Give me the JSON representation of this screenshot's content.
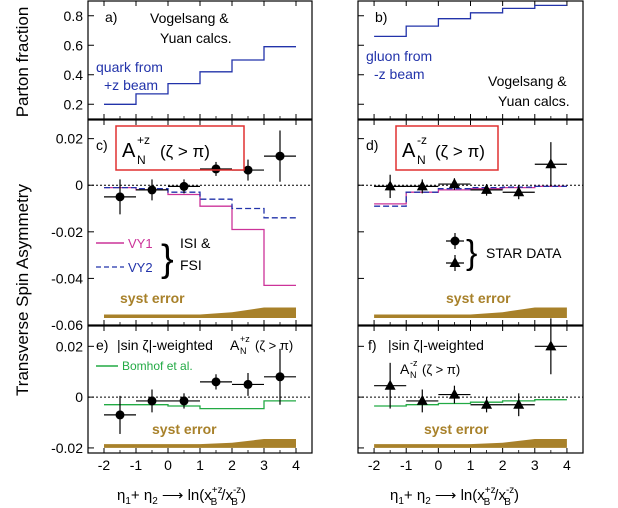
{
  "figure": {
    "left_ylabel_top": "Parton fraction",
    "left_ylabel_bottom": "Transverse Spin Asymmetry",
    "xlabel_left": "η1+ η2 ⟶ ln(x_B^{+z}/x_B^{-z})",
    "xlabel_right": "η1+ η2 ⟶ ln(x_B^{+z}/x_B^{-z})",
    "x_ticks": [
      "-2",
      "-1",
      "0",
      "1",
      "2",
      "3",
      "4"
    ]
  },
  "texts": {
    "a_label": "a)",
    "b_label": "b)",
    "c_label": "c)",
    "d_label": "d)",
    "e_label": "e)",
    "f_label": "f)",
    "vy_calcs_1": "Vogelsang &",
    "vy_calcs_2": "Yuan calcs.",
    "quark_1": "quark from",
    "quark_2": "+z beam",
    "gluon_1": "gluon from",
    "gluon_2": "-z beam",
    "an_plus_base": "A",
    "an_plus_sup": "+z",
    "an_sub": "N",
    "an_minus_sup": "-z",
    "zeta_cond": "(ζ > π)",
    "legend_vy1": "VY1",
    "legend_vy2": "VY2",
    "legend_isi": "ISI &",
    "legend_fsi": "FSI",
    "star_data": "STAR  DATA",
    "syst_error": "syst error",
    "sin_weighted": "|sin ζ|-weighted",
    "bomhof": "Bomhof et al."
  },
  "colors": {
    "quark": "#2233aa",
    "gluon": "#2233aa",
    "vy1": "#cc3399",
    "vy2": "#2233aa",
    "bomhof": "#22aa44",
    "syst": "#a8812a",
    "box": "#e03030"
  },
  "chart_data": [
    {
      "panel": "a",
      "type": "line",
      "ylabel": "Parton fraction",
      "ylim": [
        0.1,
        0.9
      ],
      "xlim": [
        -2.5,
        4.5
      ],
      "y_ticks": [
        "0.2",
        "0.4",
        "0.6",
        "0.8"
      ],
      "series": [
        {
          "name": "quark from +z beam",
          "step_edges": [
            -2,
            -1,
            0,
            1,
            2,
            3,
            4
          ],
          "values": [
            0.2,
            0.27,
            0.34,
            0.42,
            0.5,
            0.59
          ]
        }
      ]
    },
    {
      "panel": "b",
      "type": "line",
      "ylim": [
        0.1,
        0.9
      ],
      "xlim": [
        -2.5,
        4.5
      ],
      "series": [
        {
          "name": "gluon from -z beam",
          "step_edges": [
            -2,
            -1,
            0,
            1,
            2,
            3,
            4
          ],
          "values": [
            0.66,
            0.73,
            0.78,
            0.82,
            0.85,
            0.87
          ]
        }
      ]
    },
    {
      "panel": "c",
      "type": "scatter",
      "ylabel": "Transverse Spin Asymmetry",
      "ylim": [
        -0.06,
        0.028
      ],
      "xlim": [
        -2.5,
        4.5
      ],
      "y_ticks": [
        "0.02",
        "0",
        "-0.02",
        "-0.04",
        "-0.06"
      ],
      "data": {
        "x": [
          -1.5,
          -0.5,
          0.5,
          1.5,
          2.5,
          3.5
        ],
        "y": [
          -0.005,
          -0.002,
          -0.0005,
          0.007,
          0.0065,
          0.0125
        ],
        "yerr": [
          0.0075,
          0.0045,
          0.003,
          0.003,
          0.0045,
          0.011
        ],
        "xerr": [
          0.5,
          0.5,
          0.5,
          0.5,
          0.5,
          0.5
        ]
      },
      "series": [
        {
          "name": "VY1",
          "step_edges": [
            -2,
            -1,
            0,
            1,
            2,
            3,
            4
          ],
          "values": [
            -0.001,
            -0.002,
            -0.004,
            -0.009,
            -0.019,
            -0.043
          ]
        },
        {
          "name": "VY2",
          "step_edges": [
            -2,
            -1,
            0,
            1,
            2,
            3,
            4
          ],
          "values": [
            -0.001,
            -0.0015,
            -0.003,
            -0.006,
            -0.01,
            -0.014
          ]
        }
      ],
      "syst_band": {
        "x": [
          -2,
          -1,
          0,
          1,
          2,
          3,
          4
        ],
        "upper": [
          -0.0555,
          -0.0555,
          -0.0555,
          -0.0555,
          -0.0545,
          -0.0525,
          -0.0525
        ],
        "lower": [
          -0.057,
          -0.057,
          -0.057,
          -0.057,
          -0.057,
          -0.057,
          -0.057
        ]
      }
    },
    {
      "panel": "d",
      "type": "scatter",
      "ylim": [
        -0.06,
        0.028
      ],
      "xlim": [
        -2.5,
        4.5
      ],
      "data": {
        "x": [
          -1.5,
          -0.5,
          0.5,
          1.5,
          2.5,
          3.5
        ],
        "y": [
          -0.0005,
          -0.0005,
          0.0005,
          -0.002,
          -0.003,
          0.009
        ],
        "yerr": [
          0.005,
          0.003,
          0.0025,
          0.0025,
          0.003,
          0.0095
        ],
        "xerr": [
          0.5,
          0.5,
          0.5,
          0.5,
          0.5,
          0.5
        ]
      },
      "series": [
        {
          "name": "VY1",
          "step_edges": [
            -2,
            -1,
            0,
            1,
            2,
            3,
            4
          ],
          "values": [
            -0.008,
            -0.003,
            -0.002,
            -0.0015,
            -0.001,
            -0.0005
          ]
        },
        {
          "name": "VY2",
          "step_edges": [
            -2,
            -1,
            0,
            1,
            2,
            3,
            4
          ],
          "values": [
            -0.009,
            -0.003,
            -0.0015,
            -0.001,
            -0.0008,
            -0.0005
          ]
        }
      ],
      "syst_band": {
        "x": [
          -2,
          -1,
          0,
          1,
          2,
          3,
          4
        ],
        "upper": [
          -0.0555,
          -0.0555,
          -0.0555,
          -0.0555,
          -0.0545,
          -0.0525,
          -0.0525
        ],
        "lower": [
          -0.057,
          -0.057,
          -0.057,
          -0.057,
          -0.057,
          -0.057,
          -0.057
        ]
      }
    },
    {
      "panel": "e",
      "type": "scatter",
      "ylim": [
        -0.022,
        0.028
      ],
      "xlim": [
        -2.5,
        4.5
      ],
      "y_ticks": [
        "0.02",
        "0",
        "-0.02"
      ],
      "data": {
        "x": [
          -1.5,
          -0.5,
          0.5,
          1.5,
          2.5,
          3.5
        ],
        "y": [
          -0.007,
          -0.0015,
          -0.0015,
          0.006,
          0.005,
          0.008
        ],
        "yerr": [
          0.0075,
          0.0045,
          0.003,
          0.003,
          0.0045,
          0.011
        ],
        "xerr": [
          0.5,
          0.5,
          0.5,
          0.5,
          0.5,
          0.5
        ]
      },
      "series": [
        {
          "name": "Bomhof et al.",
          "step_edges": [
            -2,
            -1,
            0,
            1,
            2,
            3,
            4
          ],
          "values": [
            -0.003,
            -0.003,
            -0.0035,
            -0.0045,
            -0.0045,
            -0.0015
          ]
        }
      ],
      "syst_band": {
        "x": [
          -2,
          -1,
          0,
          1,
          2,
          3,
          4
        ],
        "upper": [
          -0.0185,
          -0.0185,
          -0.0185,
          -0.0185,
          -0.018,
          -0.0165,
          -0.0165
        ],
        "lower": [
          -0.02,
          -0.02,
          -0.02,
          -0.02,
          -0.02,
          -0.02,
          -0.02
        ]
      }
    },
    {
      "panel": "f",
      "type": "scatter",
      "ylim": [
        -0.022,
        0.028
      ],
      "xlim": [
        -2.5,
        4.5
      ],
      "data": {
        "x": [
          -1.5,
          -0.5,
          0.5,
          1.5,
          2.5,
          3.5
        ],
        "y": [
          0.0045,
          -0.0015,
          0.001,
          -0.003,
          -0.003,
          0.02
        ],
        "yerr": [
          0.009,
          0.0045,
          0.0035,
          0.003,
          0.0045,
          0.011
        ],
        "xerr": [
          0.5,
          0.5,
          0.5,
          0.5,
          0.5,
          0.5
        ]
      },
      "series": [
        {
          "name": "Bomhof et al.",
          "step_edges": [
            -2,
            -1,
            0,
            1,
            2,
            3,
            4
          ],
          "values": [
            -0.0035,
            -0.003,
            -0.0025,
            -0.002,
            -0.0015,
            -0.001
          ]
        }
      ],
      "syst_band": {
        "x": [
          -2,
          -1,
          0,
          1,
          2,
          3,
          4
        ],
        "upper": [
          -0.0185,
          -0.0185,
          -0.0185,
          -0.0185,
          -0.018,
          -0.0165,
          -0.0165
        ],
        "lower": [
          -0.02,
          -0.02,
          -0.02,
          -0.02,
          -0.02,
          -0.02,
          -0.02
        ]
      }
    }
  ]
}
